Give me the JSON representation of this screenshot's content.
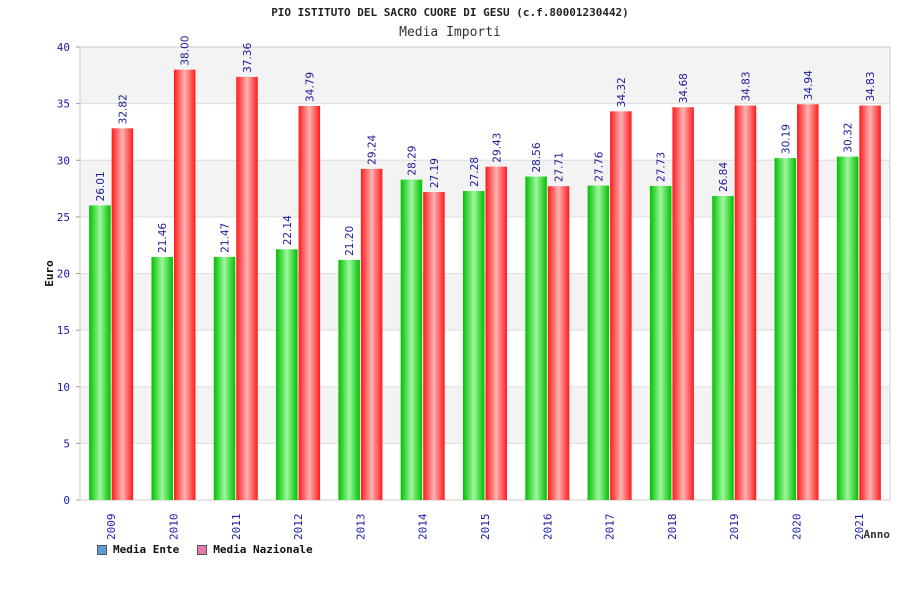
{
  "chart_data": {
    "type": "bar",
    "title": "PIO ISTITUTO DEL SACRO CUORE DI GESU (c.f.80001230442)",
    "subtitle": "Media Importi",
    "xlabel": "Anno",
    "ylabel": "Euro",
    "ylim": [
      0,
      40
    ],
    "yticks": [
      0,
      5,
      10,
      15,
      20,
      25,
      30,
      35,
      40
    ],
    "categories": [
      "2009",
      "2010",
      "2011",
      "2012",
      "2013",
      "2014",
      "2015",
      "2016",
      "2017",
      "2018",
      "2019",
      "2020",
      "2021"
    ],
    "series": [
      {
        "name": "Media Ente",
        "color": "#00c000",
        "legend_color": "#5b9bd5",
        "values": [
          26.01,
          21.46,
          21.47,
          22.14,
          21.2,
          28.29,
          27.28,
          28.56,
          27.76,
          27.73,
          26.84,
          30.19,
          30.32
        ],
        "labels": [
          "26.01",
          "21.46",
          "21.47",
          "22.14",
          "21.20",
          "28.29",
          "27.28",
          "28.56",
          "27.76",
          "27.73",
          "26.84",
          "30.19",
          "30.32"
        ]
      },
      {
        "name": "Media Nazionale",
        "color": "#ff1a1a",
        "legend_color": "#e07ab0",
        "values": [
          32.82,
          38.0,
          37.36,
          34.79,
          29.24,
          27.19,
          29.43,
          27.71,
          34.32,
          34.68,
          34.83,
          34.94,
          34.83
        ],
        "labels": [
          "32.82",
          "38.00",
          "37.36",
          "34.79",
          "29.24",
          "27.19",
          "29.43",
          "27.71",
          "34.32",
          "34.68",
          "34.83",
          "34.94",
          "34.83"
        ]
      }
    ],
    "grid": true,
    "legend_position": "bottom-left"
  }
}
